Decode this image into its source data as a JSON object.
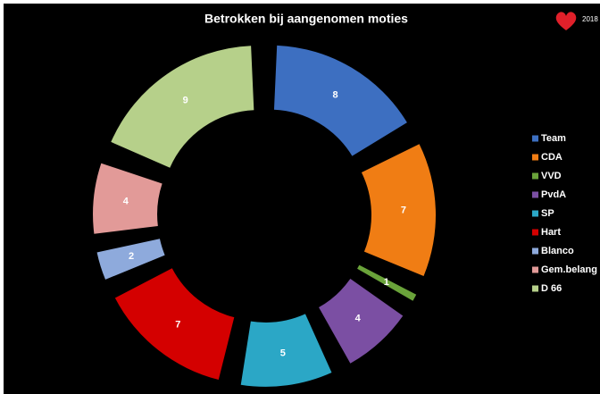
{
  "chart_data": {
    "type": "doughnut",
    "title": "Betrokken bij aangenomen moties",
    "badge": "2018",
    "categories": [
      "Team",
      "CDA",
      "VVD",
      "PvdA",
      "SP",
      "Hart",
      "Blanco",
      "Gem.belang",
      "D 66"
    ],
    "values": [
      8,
      7,
      1,
      4,
      5,
      7,
      2,
      4,
      9
    ],
    "colors": [
      "#3d6fc1",
      "#f07d14",
      "#6aa33a",
      "#7b4fa3",
      "#2ba7c6",
      "#d40000",
      "#8eaadc",
      "#e29a98",
      "#b6d08a"
    ],
    "legend": "right"
  }
}
